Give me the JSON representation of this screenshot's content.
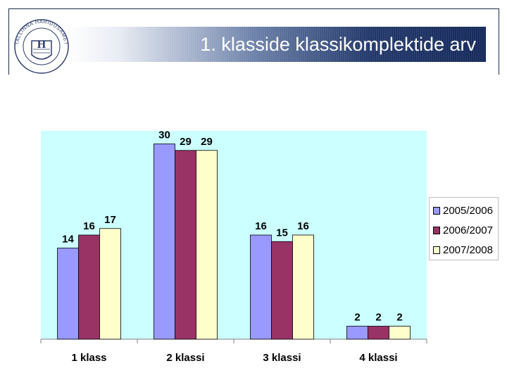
{
  "slide": {
    "title": "1. klasside klassikomplektide arv",
    "logo_icon": "tallinn-haridusamet-seal-icon",
    "logo_text": "TALLINNA HARIDUSAMET",
    "logo_monogram": "H"
  },
  "chart_data": {
    "type": "bar",
    "categories": [
      "1 klass",
      "2 klassi",
      "3 klassi",
      "4 klassi"
    ],
    "series": [
      {
        "name": "2005/2006",
        "values": [
          14,
          30,
          16,
          2
        ],
        "color": "#9999ff"
      },
      {
        "name": "2006/2007",
        "values": [
          16,
          29,
          15,
          2
        ],
        "color": "#993366"
      },
      {
        "name": "2007/2008",
        "values": [
          17,
          29,
          16,
          2
        ],
        "color": "#ffffcc"
      }
    ],
    "title": "",
    "xlabel": "",
    "ylabel": "",
    "ylim": [
      0,
      32
    ],
    "grid": false,
    "data_labels": true,
    "legend_position": "right",
    "plot_background": "#ccffff"
  }
}
